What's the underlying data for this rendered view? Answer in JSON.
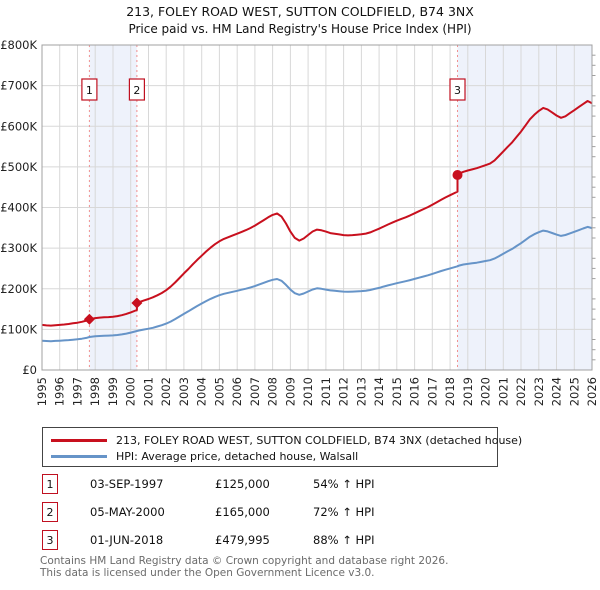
{
  "title": {
    "line1": "213, FOLEY ROAD WEST, SUTTON COLDFIELD, B74 3NX",
    "line2": "Price paid vs. HM Land Registry's House Price Index (HPI)"
  },
  "colors": {
    "property_line": "#c8101e",
    "hpi_line": "#6694c8",
    "event_line": "#f09090",
    "ownership_band": "#eef2fb",
    "gridline": "#d8d8d8",
    "plot_border": "#a0a0a0",
    "axis_text": "#222222",
    "event_box_border": "#c01020"
  },
  "chart_data": {
    "type": "line",
    "units": "GBP thousands",
    "x_axis": {
      "range": [
        1995,
        2026
      ],
      "tick_labels": [
        "1995",
        "1996",
        "1997",
        "1998",
        "1999",
        "2000",
        "2001",
        "2002",
        "2003",
        "2004",
        "2005",
        "2006",
        "2007",
        "2008",
        "2009",
        "2010",
        "2011",
        "2012",
        "2013",
        "2014",
        "2015",
        "2016",
        "2017",
        "2018",
        "2019",
        "2020",
        "2021",
        "2022",
        "2023",
        "2024",
        "2025",
        "2026"
      ]
    },
    "y_axis": {
      "range_k": [
        0,
        800
      ],
      "tick_step_k": 100,
      "minor_tick_step_k": 25,
      "tick_labels": [
        "£0",
        "£100K",
        "£200K",
        "£300K",
        "£400K",
        "£500K",
        "£600K",
        "£700K",
        "£800K"
      ]
    },
    "grid": true,
    "legend_position": "below",
    "ownership_bands": [
      [
        1997.67,
        2000.35
      ],
      [
        2018.42,
        2026.0
      ]
    ],
    "events": [
      {
        "num": "1",
        "t": 1997.67,
        "value_k": 125,
        "marker": "diamond"
      },
      {
        "num": "2",
        "t": 2000.35,
        "value_k": 165,
        "marker": "diamond"
      },
      {
        "num": "3",
        "t": 2018.42,
        "value_k": 480,
        "marker": "circle"
      }
    ],
    "series": [
      {
        "name": "213, FOLEY ROAD WEST, SUTTON COLDFIELD, B74 3NX (detached house)",
        "color": "#c8101e",
        "points": [
          [
            1995.0,
            110.9
          ],
          [
            1995.25,
            109.8
          ],
          [
            1995.5,
            109.3
          ],
          [
            1995.75,
            110.3
          ],
          [
            1996.0,
            110.9
          ],
          [
            1996.25,
            112.1
          ],
          [
            1996.5,
            113.3
          ],
          [
            1996.75,
            114.9
          ],
          [
            1997.0,
            116.4
          ],
          [
            1997.25,
            118.6
          ],
          [
            1997.5,
            121.7
          ],
          [
            1997.67,
            125.0
          ],
          [
            1998.0,
            127.8
          ],
          [
            1998.25,
            129.1
          ],
          [
            1998.5,
            129.7
          ],
          [
            1998.75,
            130.3
          ],
          [
            1999.0,
            131.2
          ],
          [
            1999.25,
            132.7
          ],
          [
            1999.5,
            134.9
          ],
          [
            1999.75,
            138.0
          ],
          [
            2000.0,
            141.7
          ],
          [
            2000.35,
            147.7
          ],
          [
            2000.35,
            165.0
          ],
          [
            2000.5,
            167.7
          ],
          [
            2000.75,
            171.3
          ],
          [
            2001.0,
            174.8
          ],
          [
            2001.25,
            178.9
          ],
          [
            2001.5,
            184.0
          ],
          [
            2001.75,
            189.5
          ],
          [
            2002.0,
            196.4
          ],
          [
            2002.25,
            205.0
          ],
          [
            2002.5,
            215.3
          ],
          [
            2002.75,
            226.4
          ],
          [
            2003.0,
            237.7
          ],
          [
            2003.25,
            248.7
          ],
          [
            2003.5,
            260.1
          ],
          [
            2003.75,
            271.1
          ],
          [
            2004.0,
            281.4
          ],
          [
            2004.25,
            291.7
          ],
          [
            2004.5,
            301.0
          ],
          [
            2004.75,
            309.6
          ],
          [
            2005.0,
            316.8
          ],
          [
            2005.25,
            322.7
          ],
          [
            2005.5,
            326.8
          ],
          [
            2005.75,
            331.3
          ],
          [
            2006.0,
            335.4
          ],
          [
            2006.25,
            339.9
          ],
          [
            2006.5,
            344.3
          ],
          [
            2006.75,
            349.5
          ],
          [
            2007.0,
            355.4
          ],
          [
            2007.25,
            362.2
          ],
          [
            2007.5,
            369.1
          ],
          [
            2007.75,
            376.0
          ],
          [
            2008.0,
            381.8
          ],
          [
            2008.25,
            385.3
          ],
          [
            2008.5,
            377.7
          ],
          [
            2008.75,
            360.5
          ],
          [
            2009.0,
            340.6
          ],
          [
            2009.25,
            325.1
          ],
          [
            2009.5,
            318.5
          ],
          [
            2009.75,
            323.7
          ],
          [
            2010.0,
            332.3
          ],
          [
            2010.25,
            340.9
          ],
          [
            2010.5,
            345.7
          ],
          [
            2010.75,
            344.0
          ],
          [
            2011.0,
            340.6
          ],
          [
            2011.25,
            337.1
          ],
          [
            2011.5,
            335.4
          ],
          [
            2011.75,
            333.7
          ],
          [
            2012.0,
            332.0
          ],
          [
            2012.25,
            331.3
          ],
          [
            2012.5,
            332.0
          ],
          [
            2012.75,
            333.0
          ],
          [
            2013.0,
            334.0
          ],
          [
            2013.25,
            335.7
          ],
          [
            2013.5,
            338.8
          ],
          [
            2013.75,
            343.3
          ],
          [
            2014.0,
            347.8
          ],
          [
            2014.25,
            352.9
          ],
          [
            2014.5,
            358.1
          ],
          [
            2014.75,
            362.9
          ],
          [
            2015.0,
            367.4
          ],
          [
            2015.25,
            371.9
          ],
          [
            2015.5,
            376.0
          ],
          [
            2015.75,
            380.5
          ],
          [
            2016.0,
            385.6
          ],
          [
            2016.25,
            390.8
          ],
          [
            2016.5,
            396.0
          ],
          [
            2016.75,
            401.1
          ],
          [
            2017.0,
            407.0
          ],
          [
            2017.25,
            413.1
          ],
          [
            2017.5,
            419.0
          ],
          [
            2017.75,
            424.8
          ],
          [
            2018.0,
            430.3
          ],
          [
            2018.42,
            439.1
          ],
          [
            2018.42,
            480.0
          ],
          [
            2018.5,
            483.2
          ],
          [
            2018.75,
            488.0
          ],
          [
            2019.0,
            491.1
          ],
          [
            2019.25,
            493.7
          ],
          [
            2019.5,
            496.7
          ],
          [
            2019.75,
            500.5
          ],
          [
            2020.0,
            504.2
          ],
          [
            2020.25,
            508.0
          ],
          [
            2020.5,
            515.5
          ],
          [
            2020.75,
            526.8
          ],
          [
            2021.0,
            538.1
          ],
          [
            2021.25,
            549.3
          ],
          [
            2021.5,
            560.6
          ],
          [
            2021.75,
            573.8
          ],
          [
            2022.0,
            586.9
          ],
          [
            2022.25,
            602.0
          ],
          [
            2022.5,
            617.0
          ],
          [
            2022.75,
            628.3
          ],
          [
            2023.0,
            637.7
          ],
          [
            2023.25,
            645.2
          ],
          [
            2023.5,
            641.5
          ],
          [
            2023.75,
            634.0
          ],
          [
            2024.0,
            626.4
          ],
          [
            2024.25,
            620.8
          ],
          [
            2024.5,
            624.5
          ],
          [
            2024.75,
            632.1
          ],
          [
            2025.0,
            639.6
          ],
          [
            2025.25,
            647.1
          ],
          [
            2025.5,
            654.6
          ],
          [
            2025.75,
            662.1
          ],
          [
            2026.0,
            656.5
          ]
        ]
      },
      {
        "name": "HPI: Average price, detached house, Walsall",
        "color": "#6694c8",
        "points": [
          [
            1995.0,
            72.0
          ],
          [
            1995.25,
            71.3
          ],
          [
            1995.5,
            71.0
          ],
          [
            1995.75,
            71.6
          ],
          [
            1996.0,
            72.2
          ],
          [
            1996.25,
            72.8
          ],
          [
            1996.5,
            73.6
          ],
          [
            1996.75,
            74.6
          ],
          [
            1997.0,
            75.6
          ],
          [
            1997.25,
            77.0
          ],
          [
            1997.5,
            79.0
          ],
          [
            1997.67,
            81.2
          ],
          [
            1998.0,
            83.0
          ],
          [
            1998.25,
            83.8
          ],
          [
            1998.5,
            84.2
          ],
          [
            1998.75,
            84.6
          ],
          [
            1999.0,
            85.2
          ],
          [
            1999.25,
            86.2
          ],
          [
            1999.5,
            87.6
          ],
          [
            1999.75,
            89.6
          ],
          [
            2000.0,
            92.0
          ],
          [
            2000.35,
            95.9
          ],
          [
            2000.5,
            97.5
          ],
          [
            2000.75,
            99.6
          ],
          [
            2001.0,
            101.6
          ],
          [
            2001.25,
            104.0
          ],
          [
            2001.5,
            107.0
          ],
          [
            2001.75,
            110.2
          ],
          [
            2002.0,
            114.2
          ],
          [
            2002.25,
            119.2
          ],
          [
            2002.5,
            125.2
          ],
          [
            2002.75,
            131.6
          ],
          [
            2003.0,
            138.2
          ],
          [
            2003.25,
            144.6
          ],
          [
            2003.5,
            151.2
          ],
          [
            2003.75,
            157.6
          ],
          [
            2004.0,
            163.6
          ],
          [
            2004.25,
            169.6
          ],
          [
            2004.5,
            175.0
          ],
          [
            2004.75,
            180.0
          ],
          [
            2005.0,
            184.2
          ],
          [
            2005.25,
            187.6
          ],
          [
            2005.5,
            190.0
          ],
          [
            2005.75,
            192.6
          ],
          [
            2006.0,
            195.0
          ],
          [
            2006.25,
            197.6
          ],
          [
            2006.5,
            200.2
          ],
          [
            2006.75,
            203.2
          ],
          [
            2007.0,
            206.6
          ],
          [
            2007.25,
            210.6
          ],
          [
            2007.5,
            214.6
          ],
          [
            2007.75,
            218.6
          ],
          [
            2008.0,
            222.0
          ],
          [
            2008.25,
            224.0
          ],
          [
            2008.5,
            219.6
          ],
          [
            2008.75,
            209.6
          ],
          [
            2009.0,
            198.0
          ],
          [
            2009.25,
            189.0
          ],
          [
            2009.5,
            185.2
          ],
          [
            2009.75,
            188.2
          ],
          [
            2010.0,
            193.2
          ],
          [
            2010.25,
            198.2
          ],
          [
            2010.5,
            201.0
          ],
          [
            2010.75,
            200.0
          ],
          [
            2011.0,
            198.0
          ],
          [
            2011.25,
            196.0
          ],
          [
            2011.5,
            195.0
          ],
          [
            2011.75,
            194.0
          ],
          [
            2012.0,
            193.0
          ],
          [
            2012.25,
            192.6
          ],
          [
            2012.5,
            193.0
          ],
          [
            2012.75,
            193.6
          ],
          [
            2013.0,
            194.2
          ],
          [
            2013.25,
            195.2
          ],
          [
            2013.5,
            197.0
          ],
          [
            2013.75,
            199.6
          ],
          [
            2014.0,
            202.2
          ],
          [
            2014.25,
            205.2
          ],
          [
            2014.5,
            208.2
          ],
          [
            2014.75,
            211.0
          ],
          [
            2015.0,
            213.6
          ],
          [
            2015.25,
            216.2
          ],
          [
            2015.5,
            218.6
          ],
          [
            2015.75,
            221.2
          ],
          [
            2016.0,
            224.2
          ],
          [
            2016.25,
            227.2
          ],
          [
            2016.5,
            230.2
          ],
          [
            2016.75,
            233.2
          ],
          [
            2017.0,
            236.6
          ],
          [
            2017.25,
            240.2
          ],
          [
            2017.5,
            243.6
          ],
          [
            2017.75,
            247.0
          ],
          [
            2018.0,
            250.2
          ],
          [
            2018.42,
            255.3
          ],
          [
            2018.5,
            257.0
          ],
          [
            2018.75,
            259.6
          ],
          [
            2019.0,
            261.2
          ],
          [
            2019.25,
            262.6
          ],
          [
            2019.5,
            264.2
          ],
          [
            2019.75,
            266.2
          ],
          [
            2020.0,
            268.2
          ],
          [
            2020.25,
            270.2
          ],
          [
            2020.5,
            274.2
          ],
          [
            2020.75,
            280.2
          ],
          [
            2021.0,
            286.2
          ],
          [
            2021.25,
            292.2
          ],
          [
            2021.5,
            298.2
          ],
          [
            2021.75,
            305.2
          ],
          [
            2022.0,
            312.2
          ],
          [
            2022.25,
            320.2
          ],
          [
            2022.5,
            328.2
          ],
          [
            2022.75,
            334.2
          ],
          [
            2023.0,
            339.2
          ],
          [
            2023.25,
            343.2
          ],
          [
            2023.5,
            341.2
          ],
          [
            2023.75,
            337.2
          ],
          [
            2024.0,
            333.2
          ],
          [
            2024.25,
            330.2
          ],
          [
            2024.5,
            332.2
          ],
          [
            2024.75,
            336.2
          ],
          [
            2025.0,
            340.2
          ],
          [
            2025.25,
            344.2
          ],
          [
            2025.5,
            348.2
          ],
          [
            2025.75,
            352.2
          ],
          [
            2026.0,
            349.2
          ]
        ]
      }
    ]
  },
  "legend": {
    "items": [
      {
        "label": "213, FOLEY ROAD WEST, SUTTON COLDFIELD, B74 3NX (detached house)",
        "color": "#c8101e"
      },
      {
        "label": "HPI: Average price, detached house, Walsall",
        "color": "#6694c8"
      }
    ]
  },
  "transactions": [
    {
      "num": "1",
      "date": "03-SEP-1997",
      "price": "£125,000",
      "hpi": "54% ↑ HPI"
    },
    {
      "num": "2",
      "date": "05-MAY-2000",
      "price": "£165,000",
      "hpi": "72% ↑ HPI"
    },
    {
      "num": "3",
      "date": "01-JUN-2018",
      "price": "£479,995",
      "hpi": "88% ↑ HPI"
    }
  ],
  "footer": {
    "line1": "Contains HM Land Registry data © Crown copyright and database right 2026.",
    "line2": "This data is licensed under the Open Government Licence v3.0."
  }
}
